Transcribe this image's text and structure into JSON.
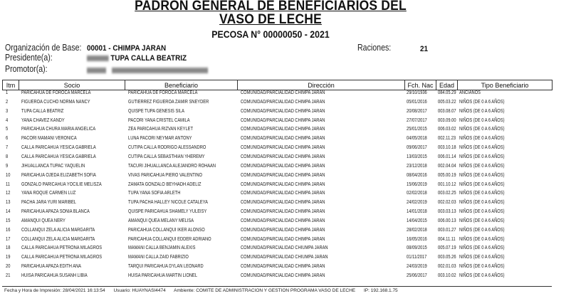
{
  "header": {
    "title_line1": "PADRON GENERAL DE BENEFICIARIOS DEL",
    "title_line2": "VASO DE LECHE",
    "pecosa": "PECOSA N° 00000050 - 2021"
  },
  "info": {
    "organizacion_label": "Organización de Base:",
    "organizacion_value": "00001 - CHIMPA JARAN",
    "raciones_label": "Raciones:",
    "raciones_value": "21",
    "presidente_label": "Presidente(a):",
    "presidente_value": "TUPA CALLA BEATRIZ",
    "promotor_label": "Promotor(a):"
  },
  "table": {
    "columns": [
      "Itm",
      "Socio",
      "Beneficiario",
      "Dirección",
      "Fch. Nac",
      "Edad",
      "Tipo Beneficiario"
    ],
    "rows": [
      [
        "1",
        "PARICAHUA DE FOROCA MARCELA",
        "PARICAHUA DE FOROCA MARCELA",
        "COMUNIDAD/PARCIALIDAD CHIMPA JARAN",
        "29/10/1936",
        "084.05.29",
        "ANCIANOS"
      ],
      [
        "2",
        "FIGUEROA CUCHO NORMA NANCY",
        "GUTIERREZ FIGUEROA ZAMIR SNEYDER",
        "COMUNIDAD/PARCIALIDAD CHIMPA JARAN",
        "05/01/2016",
        "005.03.22",
        "NIÑOS (DE 0 A 6 AÑOS)"
      ],
      [
        "3",
        "TUPA CALLA BEATRIZ",
        "QUISPE TUPA GENESIS SILA",
        "COMUNIDAD/PARCIALIDAD CHIMPA JARAN",
        "20/08/2017",
        "003.08.07",
        "NIÑOS (DE 0 A 6 AÑOS)"
      ],
      [
        "4",
        "YANA CHAVEZ KANDY",
        "PACORI YANA CRISTEL CAMILA",
        "COMUNIDAD/PARCIALIDAD CHIMPA JARAN",
        "27/07/2017",
        "003.09.00",
        "NIÑOS (DE 0 A 6 AÑOS)"
      ],
      [
        "5",
        "PARICAHUA CHURA MARIA ANGELICA",
        "ZEA PARICAHUA RIZVAN KEYLET",
        "COMUNIDAD/PARCIALIDAD CHIMPA JARAN",
        "25/01/2015",
        "006.03.02",
        "NIÑOS (DE 0 A 6 AÑOS)"
      ],
      [
        "6",
        "PACORI MAMANI VERONICA",
        "LUNA PACORI NEYMAR ANTONY",
        "COMUNIDAD/PARCIALIDAD CHIMPA JARAN",
        "04/05/2018",
        "002.11.23",
        "NIÑOS (DE 0 A 6 AÑOS)"
      ],
      [
        "7",
        "CALLA PARICAHUA YESICA GABRIELA",
        "CUTIPA CALLA RODRIGO ALESSANDRO",
        "COMUNIDAD/PARCIALIDAD CHIMPA JARAN",
        "09/06/2017",
        "003.10.18",
        "NIÑOS (DE 0 A 6 AÑOS)"
      ],
      [
        "8",
        "CALLA PARICAHUA YESICA GABRIELA",
        "CUTIPA CALLA SEBASTHIAN YHEREMY",
        "COMUNIDAD/PARCIALIDAD CHIMPA JARAN",
        "13/03/2015",
        "006.01.14",
        "NIÑOS (DE 0 A 6 AÑOS)"
      ],
      [
        "9",
        "JIHUALLANCA TUPAC YAQUELIN",
        "TACURI JIHUALLANCA ALEJANDRO ROHAAN",
        "COMUNIDAD/PARCIALIDAD CHIMPA JARAN",
        "23/12/2018",
        "002.04.04",
        "NIÑOS (DE 0 A 6 AÑOS)"
      ],
      [
        "10",
        "PARICAHUA OJEDA ELIZABETH SOFIA",
        "VIVAS PARICAHUA PIERO VALENTINO",
        "COMUNIDAD/PARCIALIDAD CHIMPA JARAN",
        "08/04/2016",
        "005.00.19",
        "NIÑOS (DE 0 A 6 AÑOS)"
      ],
      [
        "11",
        "GONZALO PARICAHUA YOCILIE MELISZA",
        "ZAMATA GONZALO BEYHADH ADELIZ",
        "COMUNIDAD/PARCIALIDAD CHIMPA JARAN",
        "15/06/2019",
        "001.10.12",
        "NIÑOS (DE 0 A 6 AÑOS)"
      ],
      [
        "12",
        "YANA ROQUE CARMEN LUZ",
        "TUPA YANA SOFIA  ARLETH",
        "COMUNIDAD/PARCIALIDAD CHIMPA JARAN",
        "02/02/2018",
        "003.02.25",
        "NIÑOS (DE 0 A 6 AÑOS)"
      ],
      [
        "13",
        "PACHA JARA YURI MARIBEL",
        "TUPA PACHA HALLEY NICOLE CATALEYA",
        "COMUNIDAD/PARCIALIDAD CHIMPA JARAN",
        "24/02/2019",
        "002.02.03",
        "NIÑOS (DE 0 A 6 AÑOS)"
      ],
      [
        "14",
        "PARICAHUA APAZA SONIA BLANCA",
        "QUISPE PARICAHUA SHAMELY YULEISY",
        "COMUNIDAD/PARCIALIDAD CHIMPA JARAN",
        "14/01/2018",
        "003.03.13",
        "NIÑOS (DE 0 A 6 AÑOS)"
      ],
      [
        "15",
        "AMANQUI QUEA NERY",
        "AMANQUI QUEA MELANY MELISA",
        "COMUNIDAD/PARCIALIDAD CHIMPA JARAN",
        "14/04/2015",
        "006.00.13",
        "NIÑOS (DE 0 A 6 AÑOS)"
      ],
      [
        "16",
        "COLLANQUI ZELA ALICIA MARGARITA",
        "PARICAHUA COLLANQUI IKER ALONSO",
        "COMUNIDAD/PARCIALIDAD CHIMPA JARAN",
        "28/02/2018",
        "003.01.27",
        "NIÑOS (DE 0 A 6 AÑOS)"
      ],
      [
        "17",
        "COLLANQUI ZELA ALICIA MARGARITA",
        "PARICAHUA COLLANQUI EDDER ADRIANO",
        "COMUNIDAD/PARCIALIDAD CHIMPA JARAN",
        "16/05/2016",
        "004.11.11",
        "NIÑOS (DE 0 A 6 AÑOS)"
      ],
      [
        "18",
        "CALLA PARICAHUA PETRONA MILAGROS",
        "MAMANI CALLA BENJAMIN ALEXIS",
        "COMUNIDAD/PARCIALIDAD CHIUMPA JARAN",
        "08/09/2015",
        "005.07.19",
        "NIÑOS (DE 0 A 6 AÑOS)"
      ],
      [
        "19",
        "CALLA PARICAHUA PETRONA MILAGROS",
        "MAMANI CALLA ZAID FABRIZIO",
        "COMUNIDAD/PARCIALIDAD CHIUMPA JARAN",
        "01/11/2017",
        "003.05.26",
        "NIÑOS (DE 0 A 6 AÑOS)"
      ],
      [
        "20",
        "PARICAHUA APAZA EDITH ANA",
        "TARQUI PARICAHUA DYLAN LEONARD",
        "COMUNIDAD/PARCIALIDAD CHIMPA JARAN",
        "24/03/2019",
        "002.01.03",
        "NIÑOS (DE 0 A 6 AÑOS)"
      ],
      [
        "21",
        "HUISA PARICAHUA SUSANH LIBIA",
        "HUISA PARICAHUA MARTIN LIONEL",
        "COMUNIDAD/PARCIALIDAD CHIMPA JARAN",
        "25/06/2017",
        "003.10.02",
        "NIÑOS (DE 0 A 6 AÑOS)"
      ]
    ]
  },
  "footer": {
    "fecha": "Fecha y Hora de Impresión: 28/04/2021 16:13:54",
    "usuario": "Usuario: HUAYNASI4474",
    "ambiente": "Ambiente: COMITE DE ADMINISTRACION Y GESTION PROGRAMA VASO DE LECHE",
    "ip": "IP: 192.168.1.75"
  }
}
